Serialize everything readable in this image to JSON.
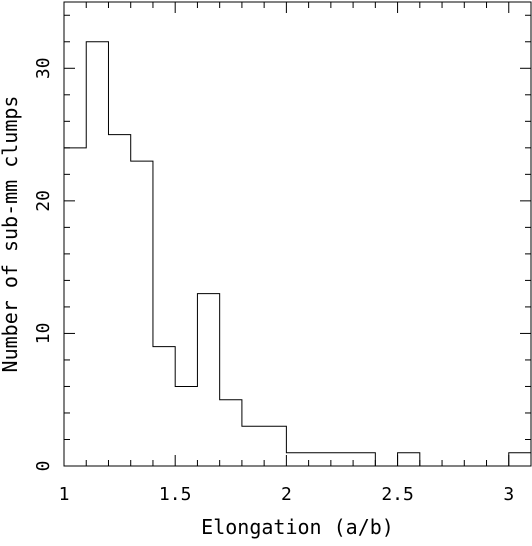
{
  "chart_data": {
    "type": "bar",
    "style": "step-histogram",
    "xlabel": "Elongation (a/b)",
    "ylabel": "Number of sub-mm clumps",
    "xlim": [
      1.0,
      3.1
    ],
    "ylim": [
      0,
      35
    ],
    "x_ticks": [
      "1",
      "1.5",
      "2",
      "2.5",
      "3"
    ],
    "y_ticks": [
      "0",
      "10",
      "20",
      "30"
    ],
    "bins": [
      {
        "x0": 1.0,
        "x1": 1.1,
        "count": 24
      },
      {
        "x0": 1.1,
        "x1": 1.2,
        "count": 32
      },
      {
        "x0": 1.2,
        "x1": 1.3,
        "count": 25
      },
      {
        "x0": 1.3,
        "x1": 1.4,
        "count": 23
      },
      {
        "x0": 1.4,
        "x1": 1.5,
        "count": 9
      },
      {
        "x0": 1.5,
        "x1": 1.6,
        "count": 6
      },
      {
        "x0": 1.6,
        "x1": 1.7,
        "count": 13
      },
      {
        "x0": 1.7,
        "x1": 1.8,
        "count": 5
      },
      {
        "x0": 1.8,
        "x1": 1.9,
        "count": 3
      },
      {
        "x0": 1.9,
        "x1": 2.0,
        "count": 3
      },
      {
        "x0": 2.0,
        "x1": 2.1,
        "count": 1
      },
      {
        "x0": 2.1,
        "x1": 2.2,
        "count": 1
      },
      {
        "x0": 2.2,
        "x1": 2.3,
        "count": 1
      },
      {
        "x0": 2.3,
        "x1": 2.4,
        "count": 1
      },
      {
        "x0": 2.4,
        "x1": 2.5,
        "count": 0
      },
      {
        "x0": 2.5,
        "x1": 2.6,
        "count": 1
      },
      {
        "x0": 2.6,
        "x1": 2.7,
        "count": 0
      },
      {
        "x0": 2.7,
        "x1": 2.8,
        "count": 0
      },
      {
        "x0": 2.8,
        "x1": 2.9,
        "count": 0
      },
      {
        "x0": 2.9,
        "x1": 3.0,
        "count": 0
      },
      {
        "x0": 3.0,
        "x1": 3.1,
        "count": 1
      }
    ],
    "line_color": "#000000",
    "grid": false,
    "legend": "none"
  }
}
